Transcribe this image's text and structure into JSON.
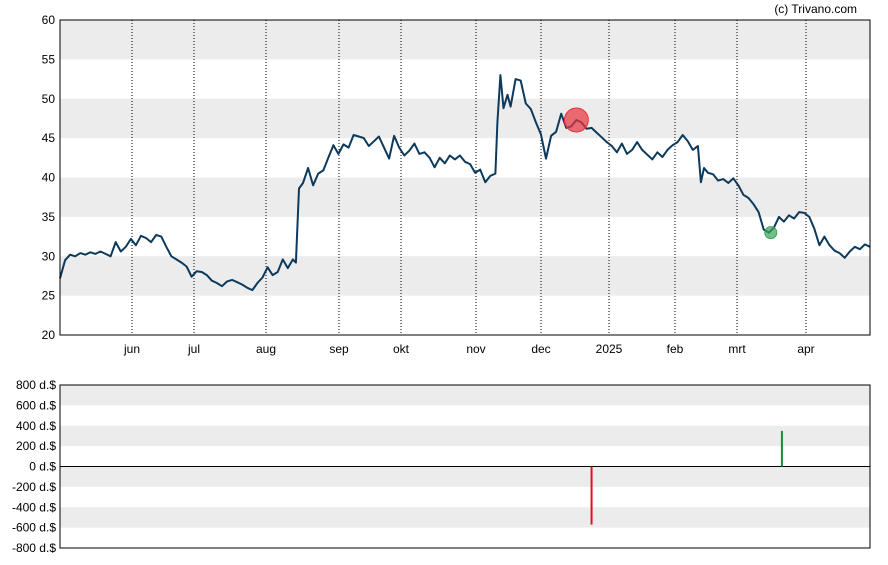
{
  "copyright": "(c) Trivano.com",
  "colors": {
    "band": "#ececec",
    "price_line": "#0d3a5c",
    "sell_marker": "#e8323c",
    "buy_marker": "#3aa35a",
    "sell_bar": "#e0101e",
    "buy_bar": "#1a8a3a",
    "frame": "#000000"
  },
  "chart_data": [
    {
      "type": "line",
      "ylim": [
        20,
        60
      ],
      "y_ticks": [
        "20",
        "25",
        "30",
        "35",
        "40",
        "45",
        "50",
        "55",
        "60"
      ],
      "x_tick_labels": [
        "jun",
        "jul",
        "aug",
        "sep",
        "okt",
        "nov",
        "dec",
        "2025",
        "feb",
        "mrt",
        "apr"
      ],
      "grid": "alternating horizontal bands, dotted vertical lines at month starts",
      "series": [
        {
          "points": [
            [
              0,
              27.2
            ],
            [
              0.5,
              29.5
            ],
            [
              1,
              30.2
            ],
            [
              1.5,
              30.0
            ],
            [
              2,
              30.4
            ],
            [
              2.5,
              30.2
            ],
            [
              3,
              30.5
            ],
            [
              3.5,
              30.3
            ],
            [
              4,
              30.6
            ],
            [
              4.5,
              30.3
            ],
            [
              5,
              30.0
            ],
            [
              5.5,
              31.8
            ],
            [
              6,
              30.6
            ],
            [
              6.5,
              31.2
            ],
            [
              7,
              32.2
            ],
            [
              7.5,
              31.4
            ],
            [
              8,
              32.6
            ],
            [
              8.5,
              32.3
            ],
            [
              9,
              31.8
            ],
            [
              9.5,
              32.7
            ],
            [
              10,
              32.5
            ],
            [
              10.5,
              31.2
            ],
            [
              11,
              30.0
            ],
            [
              11.5,
              29.6
            ],
            [
              12,
              29.2
            ],
            [
              12.5,
              28.7
            ],
            [
              13,
              27.4
            ],
            [
              13.5,
              28.1
            ],
            [
              14,
              28.0
            ],
            [
              14.5,
              27.6
            ],
            [
              15,
              26.9
            ],
            [
              15.5,
              26.6
            ],
            [
              16,
              26.2
            ],
            [
              16.5,
              26.8
            ],
            [
              17,
              27.0
            ],
            [
              17.5,
              26.7
            ],
            [
              18,
              26.4
            ],
            [
              18.5,
              26.0
            ],
            [
              19,
              25.7
            ],
            [
              19.5,
              26.6
            ],
            [
              20,
              27.3
            ],
            [
              20.5,
              28.6
            ],
            [
              21,
              27.6
            ],
            [
              21.5,
              28.0
            ],
            [
              22,
              29.6
            ],
            [
              22.5,
              28.5
            ],
            [
              23,
              29.6
            ],
            [
              23.3,
              29.2
            ],
            [
              23.6,
              38.6
            ],
            [
              24,
              39.3
            ],
            [
              24.5,
              41.2
            ],
            [
              25,
              39.0
            ],
            [
              25.5,
              40.5
            ],
            [
              26,
              40.9
            ],
            [
              26.5,
              42.5
            ],
            [
              27,
              44.1
            ],
            [
              27.5,
              43.0
            ],
            [
              28,
              44.2
            ],
            [
              28.5,
              43.8
            ],
            [
              29,
              45.4
            ],
            [
              29.5,
              45.2
            ],
            [
              30,
              45.0
            ],
            [
              30.5,
              44.0
            ],
            [
              31,
              44.6
            ],
            [
              31.5,
              45.2
            ],
            [
              32,
              43.8
            ],
            [
              32.5,
              42.4
            ],
            [
              33,
              45.3
            ],
            [
              33.5,
              43.8
            ],
            [
              34,
              42.8
            ],
            [
              34.5,
              43.4
            ],
            [
              35,
              44.3
            ],
            [
              35.5,
              43.0
            ],
            [
              36,
              43.2
            ],
            [
              36.5,
              42.5
            ],
            [
              37,
              41.3
            ],
            [
              37.5,
              42.5
            ],
            [
              38,
              41.8
            ],
            [
              38.5,
              42.8
            ],
            [
              39,
              42.3
            ],
            [
              39.5,
              42.8
            ],
            [
              40,
              42.0
            ],
            [
              40.5,
              41.7
            ],
            [
              41,
              40.6
            ],
            [
              41.5,
              41.0
            ],
            [
              42,
              39.4
            ],
            [
              42.5,
              40.2
            ],
            [
              43,
              40.5
            ],
            [
              43.2,
              47.0
            ],
            [
              43.5,
              53.0
            ],
            [
              43.8,
              48.8
            ],
            [
              44.2,
              50.5
            ],
            [
              44.5,
              49.0
            ],
            [
              45,
              52.5
            ],
            [
              45.5,
              52.3
            ],
            [
              46,
              49.4
            ],
            [
              46.5,
              48.7
            ],
            [
              47,
              47.0
            ],
            [
              47.5,
              45.5
            ],
            [
              48,
              42.4
            ],
            [
              48.5,
              45.3
            ],
            [
              49,
              45.8
            ],
            [
              49.5,
              48.1
            ],
            [
              50,
              46.3
            ],
            [
              50.5,
              46.5
            ],
            [
              51,
              47.3
            ],
            [
              51.5,
              47.0
            ],
            [
              52,
              46.2
            ],
            [
              52.5,
              46.3
            ],
            [
              53,
              45.7
            ],
            [
              53.5,
              45.1
            ],
            [
              54,
              44.5
            ],
            [
              54.5,
              44.0
            ],
            [
              55,
              43.2
            ],
            [
              55.5,
              44.3
            ],
            [
              56,
              43.0
            ],
            [
              56.5,
              43.5
            ],
            [
              57,
              44.5
            ],
            [
              57.5,
              43.5
            ],
            [
              58,
              42.9
            ],
            [
              58.5,
              42.3
            ],
            [
              59,
              43.2
            ],
            [
              59.5,
              42.6
            ],
            [
              60,
              43.5
            ],
            [
              60.5,
              44.1
            ],
            [
              61,
              44.5
            ],
            [
              61.5,
              45.4
            ],
            [
              62,
              44.6
            ],
            [
              62.5,
              43.5
            ],
            [
              63,
              44.0
            ],
            [
              63.3,
              39.4
            ],
            [
              63.6,
              41.2
            ],
            [
              64,
              40.6
            ],
            [
              64.5,
              40.4
            ],
            [
              65,
              39.6
            ],
            [
              65.5,
              39.8
            ],
            [
              66,
              39.3
            ],
            [
              66.5,
              39.9
            ],
            [
              67,
              39.0
            ],
            [
              67.5,
              37.8
            ],
            [
              68,
              37.4
            ],
            [
              68.5,
              36.6
            ],
            [
              69,
              35.6
            ],
            [
              69.5,
              33.4
            ],
            [
              70,
              33.0
            ],
            [
              70.5,
              33.6
            ],
            [
              71,
              35.0
            ],
            [
              71.5,
              34.4
            ],
            [
              72,
              35.2
            ],
            [
              72.5,
              34.8
            ],
            [
              73,
              35.6
            ],
            [
              73.5,
              35.5
            ],
            [
              74,
              35.0
            ],
            [
              74.5,
              33.5
            ],
            [
              75,
              31.4
            ],
            [
              75.5,
              32.5
            ],
            [
              76,
              31.4
            ],
            [
              76.5,
              30.7
            ],
            [
              77,
              30.4
            ],
            [
              77.5,
              29.8
            ],
            [
              78,
              30.6
            ],
            [
              78.5,
              31.2
            ],
            [
              79,
              30.9
            ],
            [
              79.5,
              31.5
            ],
            [
              80,
              31.2
            ]
          ]
        }
      ],
      "markers": [
        {
          "kind": "sell",
          "x": 51,
          "y": 47.3,
          "size": "large"
        },
        {
          "kind": "buy",
          "x": 70.2,
          "y": 33.0,
          "size": "small"
        }
      ]
    },
    {
      "type": "bar",
      "ylim": [
        -800,
        800
      ],
      "y_ticks": [
        "800 d.$",
        "600 d.$",
        "400 d.$",
        "200 d.$",
        "0 d.$",
        "-200 d.$",
        "-400 d.$",
        "-600 d.$",
        "-800 d.$"
      ],
      "grid": "alternating horizontal bands",
      "bars": [
        {
          "kind": "sell",
          "x": 52.5,
          "value": -570
        },
        {
          "kind": "buy",
          "x": 71.3,
          "value": 350
        }
      ]
    }
  ]
}
